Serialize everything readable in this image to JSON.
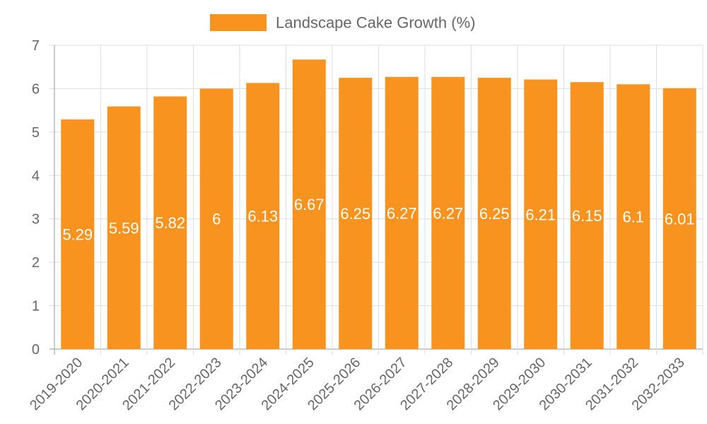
{
  "chart_data": {
    "type": "bar",
    "title": "",
    "legend": {
      "label": "Landscape Cake Growth (%)",
      "placement": "top-center"
    },
    "categories": [
      "2019-2020",
      "2020-2021",
      "2021-2022",
      "2022-2023",
      "2023-2024",
      "2024-2025",
      "2025-2026",
      "2026-2027",
      "2027-2028",
      "2028-2029",
      "2029-2030",
      "2030-2031",
      "2031-2032",
      "2032-2033"
    ],
    "series": [
      {
        "name": "Landscape Cake Growth (%)",
        "values": [
          5.29,
          5.59,
          5.82,
          6,
          6.13,
          6.67,
          6.25,
          6.27,
          6.27,
          6.25,
          6.21,
          6.15,
          6.1,
          6.01
        ]
      }
    ],
    "data_labels": [
      "5.29",
      "5.59",
      "5.82",
      "6",
      "6.13",
      "6.67",
      "6.25",
      "6.27",
      "6.27",
      "6.25",
      "6.21",
      "6.15",
      "6.1",
      "6.01"
    ],
    "yticks": [
      "0",
      "1",
      "2",
      "3",
      "4",
      "5",
      "6",
      "7"
    ],
    "ylim": [
      0,
      7
    ],
    "xlabel": "",
    "ylabel": "",
    "grid": true,
    "colors": {
      "bar": "#F7931E",
      "grid": "#DDDDDD",
      "axis": "#999999",
      "text": "#666666",
      "label": "#FFFFFF"
    }
  }
}
